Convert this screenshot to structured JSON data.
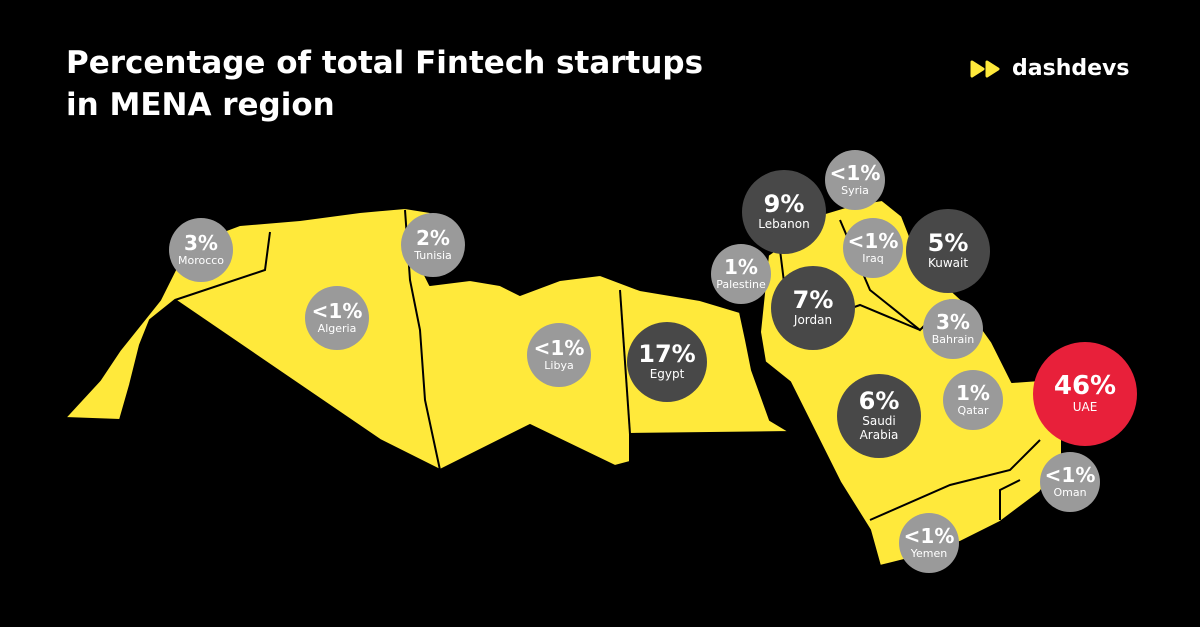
{
  "header": {
    "title_lines": [
      "Percentage of total Fintech startups",
      "in MENA region"
    ],
    "brand": "dashdevs"
  },
  "countries": [
    {
      "name": "Morocco",
      "value": "3%"
    },
    {
      "name": "Algeria",
      "value": "<1%"
    },
    {
      "name": "Tunisia",
      "value": "2%"
    },
    {
      "name": "Libya",
      "value": "<1%"
    },
    {
      "name": "Egypt",
      "value": "17%"
    },
    {
      "name": "Palestine",
      "value": "1%"
    },
    {
      "name": "Lebanon",
      "value": "9%"
    },
    {
      "name": "Syria",
      "value": "<1%"
    },
    {
      "name": "Iraq",
      "value": "<1%"
    },
    {
      "name": "Kuwait",
      "value": "5%"
    },
    {
      "name": "Jordan",
      "value": "7%"
    },
    {
      "name": "Bahrain",
      "value": "3%"
    },
    {
      "name": "Qatar",
      "value": "1%"
    },
    {
      "name": "UAE",
      "value": "46%"
    },
    {
      "name": "Saudi Arabia",
      "value": "6%"
    },
    {
      "name": "Oman",
      "value": "<1%"
    },
    {
      "name": "Yemen",
      "value": "<1%"
    }
  ]
}
